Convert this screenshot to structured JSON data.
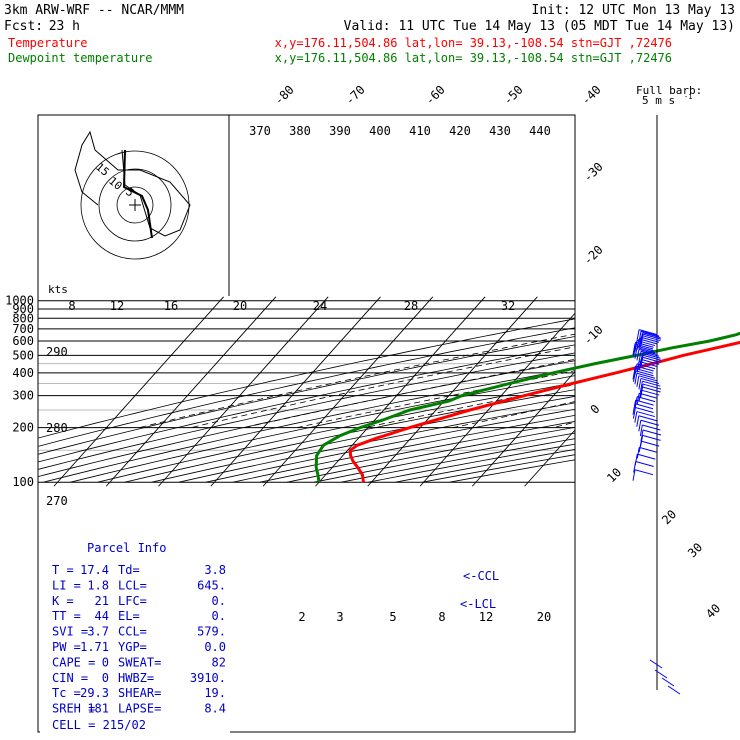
{
  "header": {
    "model": "3km ARW-WRF -- NCAR/MMM",
    "init": "Init: 12 UTC Mon 13 May 13",
    "fcst_label": "Fcst:",
    "fcst_value": "23 h",
    "valid": "Valid: 11 UTC Tue 14 May 13 (05 MDT Tue 14 May 13)",
    "temp_label": "Temperature",
    "temp_info": "x,y=176.11,504.86   lat,lon= 39.13,-108.54  stn=GJT ,72476",
    "dew_label": "Dewpoint temperature",
    "dew_info": "x,y=176.11,504.86   lat,lon= 39.13,-108.54  stn=GJT ,72476"
  },
  "barb_key": {
    "line1": "Full barb:",
    "line2": "5 m s",
    "sup": "-1"
  },
  "colors": {
    "temperature": "#ff0000",
    "dewpoint": "#007f00",
    "barbs": "#0000ff",
    "grid": "#000000",
    "mixing": "#888888"
  },
  "chart_data": {
    "type": "line",
    "title": "",
    "ylabel": "",
    "pressure_levels": [
      100,
      200,
      300,
      400,
      500,
      600,
      700,
      800,
      900,
      1000
    ],
    "isotherm_labels": [
      "-80",
      "-70",
      "-60",
      "-50",
      "-40",
      "-30",
      "-20",
      "-10",
      "0",
      "10",
      "20",
      "30",
      "40"
    ],
    "theta_labels": [
      "370",
      "380",
      "390",
      "400",
      "410",
      "420",
      "430",
      "440"
    ],
    "theta_left_labels": [
      "290",
      "280",
      "270"
    ],
    "mixing_ratio_labels": [
      "2",
      "3",
      "5",
      "8",
      "12",
      "20"
    ],
    "hodo_speed_labels": [
      "8",
      "12",
      "16",
      "20",
      "24",
      "28",
      "32"
    ],
    "hodo_units": "kts",
    "hodo_ring_labels": [
      "15",
      "10",
      "5"
    ],
    "ccl_marks": [
      "<-CCL",
      "<-LCL"
    ],
    "series": [
      {
        "name": "Temperature",
        "points": [
          [
            850,
            12.5
          ],
          [
            840,
            13.0
          ],
          [
            800,
            11.5
          ],
          [
            750,
            10.0
          ],
          [
            700,
            6.0
          ],
          [
            650,
            2.0
          ],
          [
            600,
            -2.5
          ],
          [
            550,
            -7.0
          ],
          [
            500,
            -12.0
          ],
          [
            450,
            -16.5
          ],
          [
            400,
            -22.0
          ],
          [
            350,
            -28.5
          ],
          [
            300,
            -35.5
          ],
          [
            250,
            -43.5
          ],
          [
            200,
            -52.0
          ],
          [
            175,
            -56.5
          ],
          [
            160,
            -59.0
          ],
          [
            150,
            -59.5
          ],
          [
            140,
            -58.5
          ],
          [
            130,
            -57.0
          ],
          [
            120,
            -55.0
          ],
          [
            110,
            -53.0
          ],
          [
            100,
            -51.5
          ]
        ]
      },
      {
        "name": "Dewpoint temperature",
        "points": [
          [
            845,
            -2.0
          ],
          [
            800,
            -2.5
          ],
          [
            750,
            -3.0
          ],
          [
            700,
            -3.5
          ],
          [
            650,
            -5.5
          ],
          [
            600,
            -9.5
          ],
          [
            550,
            -15.5
          ],
          [
            500,
            -21.0
          ],
          [
            450,
            -27.5
          ],
          [
            400,
            -34.0
          ],
          [
            350,
            -40.5
          ],
          [
            300,
            -47.5
          ],
          [
            280,
            -49.0
          ],
          [
            250,
            -55.0
          ],
          [
            220,
            -58.5
          ],
          [
            200,
            -61.5
          ],
          [
            180,
            -64.0
          ],
          [
            160,
            -65.5
          ],
          [
            140,
            -65.0
          ],
          [
            120,
            -63.0
          ],
          [
            110,
            -61.5
          ],
          [
            100,
            -60.0
          ]
        ]
      }
    ]
  },
  "parcel_info": {
    "title": "Parcel Info",
    "rows": [
      {
        "l1": "T",
        "v1": "17.4",
        "l2": "Td",
        "v2": "3.8"
      },
      {
        "l1": "LI",
        "v1": "1.8",
        "l2": "LCL",
        "v2": "645."
      },
      {
        "l1": "K",
        "v1": "21",
        "l2": "LFC",
        "v2": "0."
      },
      {
        "l1": "TT",
        "v1": "44",
        "l2": "EL",
        "v2": "0."
      },
      {
        "l1": "SVI",
        "v1": "3.7",
        "l2": "CCL",
        "v2": "579."
      },
      {
        "l1": "PW",
        "v1": "1.71",
        "l2": "YGP",
        "v2": "0.0"
      },
      {
        "l1": "CAPE",
        "v1": "0",
        "l2": "SWEAT",
        "v2": "82"
      },
      {
        "l1": "CIN",
        "v1": "0",
        "l2": "HWBZ",
        "v2": "3910."
      },
      {
        "l1": "Tc",
        "v1": "29.3",
        "l2": "SHEAR",
        "v2": "19."
      },
      {
        "l1": "SREH",
        "v1": "181",
        "l2": "LAPSE",
        "v2": "8.4"
      }
    ],
    "cell": "CELL = 215/02"
  }
}
